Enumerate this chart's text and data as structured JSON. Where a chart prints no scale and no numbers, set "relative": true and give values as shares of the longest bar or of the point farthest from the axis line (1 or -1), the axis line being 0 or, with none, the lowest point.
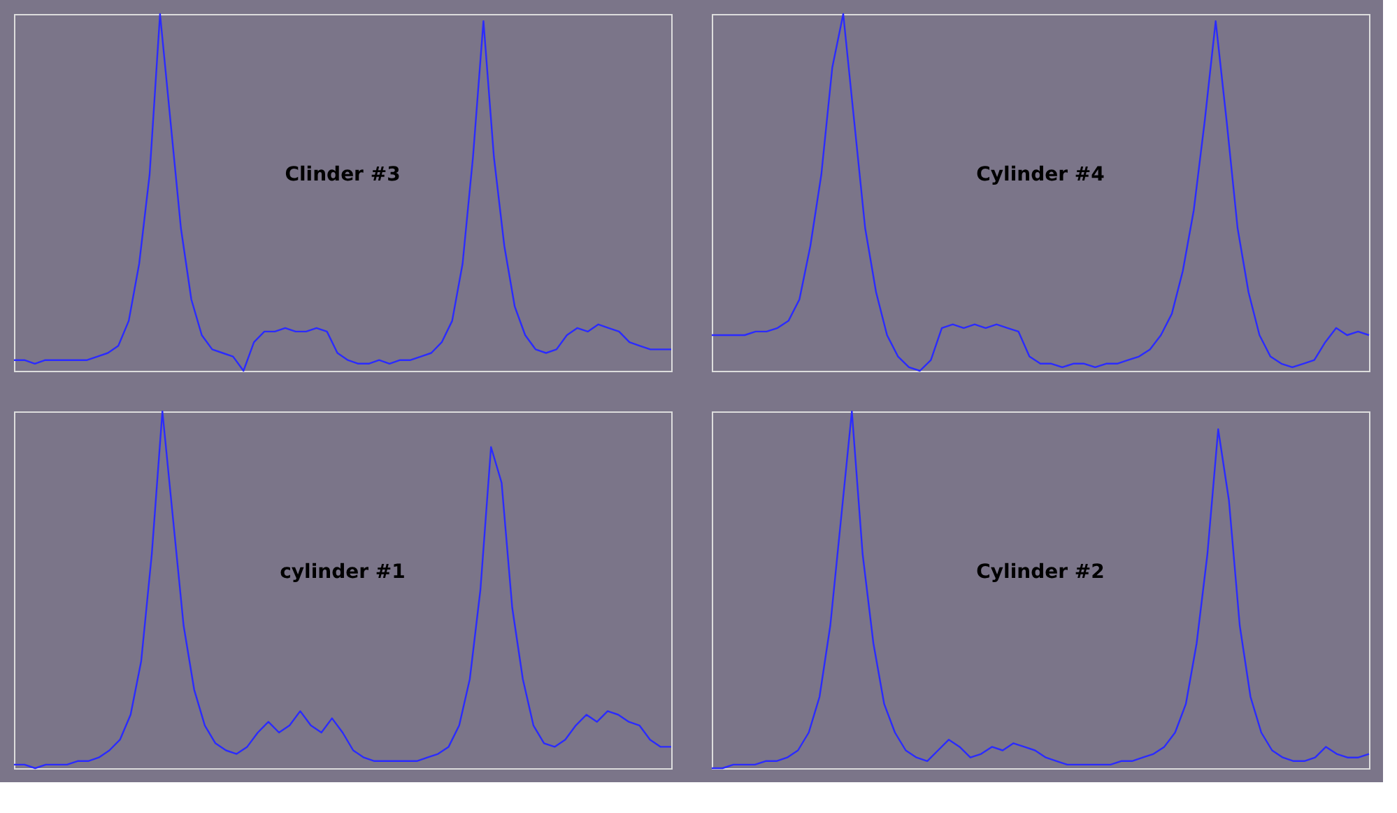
{
  "chart_data": [
    {
      "type": "line",
      "relative": true,
      "annotations": [
        "Clinder #3"
      ],
      "color": "#2b2bff",
      "categories": [
        null,
        null,
        null,
        null,
        null,
        null,
        null,
        null,
        null,
        null,
        null,
        null,
        null,
        null,
        null,
        null,
        null,
        null,
        null,
        null,
        null,
        null,
        null,
        null,
        null,
        null,
        null,
        null,
        null,
        null,
        null,
        null,
        null,
        null,
        null,
        null,
        null,
        null,
        null,
        null,
        null,
        null,
        null,
        null,
        null,
        null,
        null,
        null,
        null,
        null,
        null,
        null,
        null,
        null,
        null,
        null,
        null,
        null,
        null,
        null,
        null,
        null,
        null,
        null
      ],
      "values": [
        0.03,
        0.03,
        0.02,
        0.03,
        0.03,
        0.03,
        0.03,
        0.03,
        0.04,
        0.05,
        0.07,
        0.14,
        0.3,
        0.55,
        1.0,
        0.7,
        0.4,
        0.2,
        0.1,
        0.06,
        0.05,
        0.04,
        0.0,
        0.08,
        0.11,
        0.11,
        0.12,
        0.11,
        0.11,
        0.12,
        0.11,
        0.05,
        0.03,
        0.02,
        0.02,
        0.03,
        0.02,
        0.03,
        0.03,
        0.04,
        0.05,
        0.08,
        0.14,
        0.3,
        0.6,
        0.98,
        0.6,
        0.35,
        0.18,
        0.1,
        0.06,
        0.05,
        0.06,
        0.1,
        0.12,
        0.11,
        0.13,
        0.12,
        0.11,
        0.08,
        0.07,
        0.06,
        0.06,
        0.06
      ]
    },
    {
      "type": "line",
      "relative": true,
      "annotations": [
        "Cylinder #4"
      ],
      "color": "#2b2bff",
      "categories": [
        null,
        null,
        null,
        null,
        null,
        null,
        null,
        null,
        null,
        null,
        null,
        null,
        null,
        null,
        null,
        null,
        null,
        null,
        null,
        null,
        null,
        null,
        null,
        null,
        null,
        null,
        null,
        null,
        null,
        null,
        null,
        null,
        null,
        null,
        null,
        null,
        null,
        null,
        null,
        null,
        null,
        null,
        null,
        null,
        null,
        null,
        null,
        null,
        null,
        null,
        null,
        null,
        null,
        null,
        null,
        null,
        null,
        null,
        null,
        null,
        null
      ],
      "values": [
        0.1,
        0.1,
        0.1,
        0.1,
        0.11,
        0.11,
        0.12,
        0.14,
        0.2,
        0.35,
        0.55,
        0.85,
        1.0,
        0.7,
        0.4,
        0.22,
        0.1,
        0.04,
        0.01,
        0.0,
        0.03,
        0.12,
        0.13,
        0.12,
        0.13,
        0.12,
        0.13,
        0.12,
        0.11,
        0.04,
        0.02,
        0.02,
        0.01,
        0.02,
        0.02,
        0.01,
        0.02,
        0.02,
        0.03,
        0.04,
        0.06,
        0.1,
        0.16,
        0.28,
        0.45,
        0.7,
        0.98,
        0.7,
        0.4,
        0.22,
        0.1,
        0.04,
        0.02,
        0.01,
        0.02,
        0.03,
        0.08,
        0.12,
        0.1,
        0.11,
        0.1
      ]
    },
    {
      "type": "line",
      "relative": true,
      "annotations": [
        "cylinder #1"
      ],
      "color": "#2b2bff",
      "categories": [
        null,
        null,
        null,
        null,
        null,
        null,
        null,
        null,
        null,
        null,
        null,
        null,
        null,
        null,
        null,
        null,
        null,
        null,
        null,
        null,
        null,
        null,
        null,
        null,
        null,
        null,
        null,
        null,
        null,
        null,
        null,
        null,
        null,
        null,
        null,
        null,
        null,
        null,
        null,
        null,
        null,
        null,
        null,
        null,
        null,
        null,
        null,
        null,
        null,
        null,
        null,
        null,
        null,
        null,
        null,
        null,
        null,
        null,
        null,
        null,
        null,
        null,
        null
      ],
      "values": [
        0.01,
        0.01,
        0.0,
        0.01,
        0.01,
        0.01,
        0.02,
        0.02,
        0.03,
        0.05,
        0.08,
        0.15,
        0.3,
        0.6,
        1.0,
        0.7,
        0.4,
        0.22,
        0.12,
        0.07,
        0.05,
        0.04,
        0.06,
        0.1,
        0.13,
        0.1,
        0.12,
        0.16,
        0.12,
        0.1,
        0.14,
        0.1,
        0.05,
        0.03,
        0.02,
        0.02,
        0.02,
        0.02,
        0.02,
        0.03,
        0.04,
        0.06,
        0.12,
        0.25,
        0.5,
        0.9,
        0.8,
        0.45,
        0.25,
        0.12,
        0.07,
        0.06,
        0.08,
        0.12,
        0.15,
        0.13,
        0.16,
        0.15,
        0.13,
        0.12,
        0.08,
        0.06,
        0.06
      ]
    },
    {
      "type": "line",
      "relative": true,
      "annotations": [
        "Cylinder #2"
      ],
      "color": "#2b2bff",
      "categories": [
        null,
        null,
        null,
        null,
        null,
        null,
        null,
        null,
        null,
        null,
        null,
        null,
        null,
        null,
        null,
        null,
        null,
        null,
        null,
        null,
        null,
        null,
        null,
        null,
        null,
        null,
        null,
        null,
        null,
        null,
        null,
        null,
        null,
        null,
        null,
        null,
        null,
        null,
        null,
        null,
        null,
        null,
        null,
        null,
        null,
        null,
        null,
        null,
        null,
        null,
        null,
        null,
        null,
        null,
        null,
        null,
        null,
        null,
        null,
        null,
        null,
        null
      ],
      "values": [
        0.0,
        0.0,
        0.01,
        0.01,
        0.01,
        0.02,
        0.02,
        0.03,
        0.05,
        0.1,
        0.2,
        0.4,
        0.7,
        1.0,
        0.6,
        0.35,
        0.18,
        0.1,
        0.05,
        0.03,
        0.02,
        0.05,
        0.08,
        0.06,
        0.03,
        0.04,
        0.06,
        0.05,
        0.07,
        0.06,
        0.05,
        0.03,
        0.02,
        0.01,
        0.01,
        0.01,
        0.01,
        0.01,
        0.02,
        0.02,
        0.03,
        0.04,
        0.06,
        0.1,
        0.18,
        0.35,
        0.6,
        0.95,
        0.75,
        0.4,
        0.2,
        0.1,
        0.05,
        0.03,
        0.02,
        0.02,
        0.03,
        0.06,
        0.04,
        0.03,
        0.03,
        0.04
      ]
    }
  ]
}
